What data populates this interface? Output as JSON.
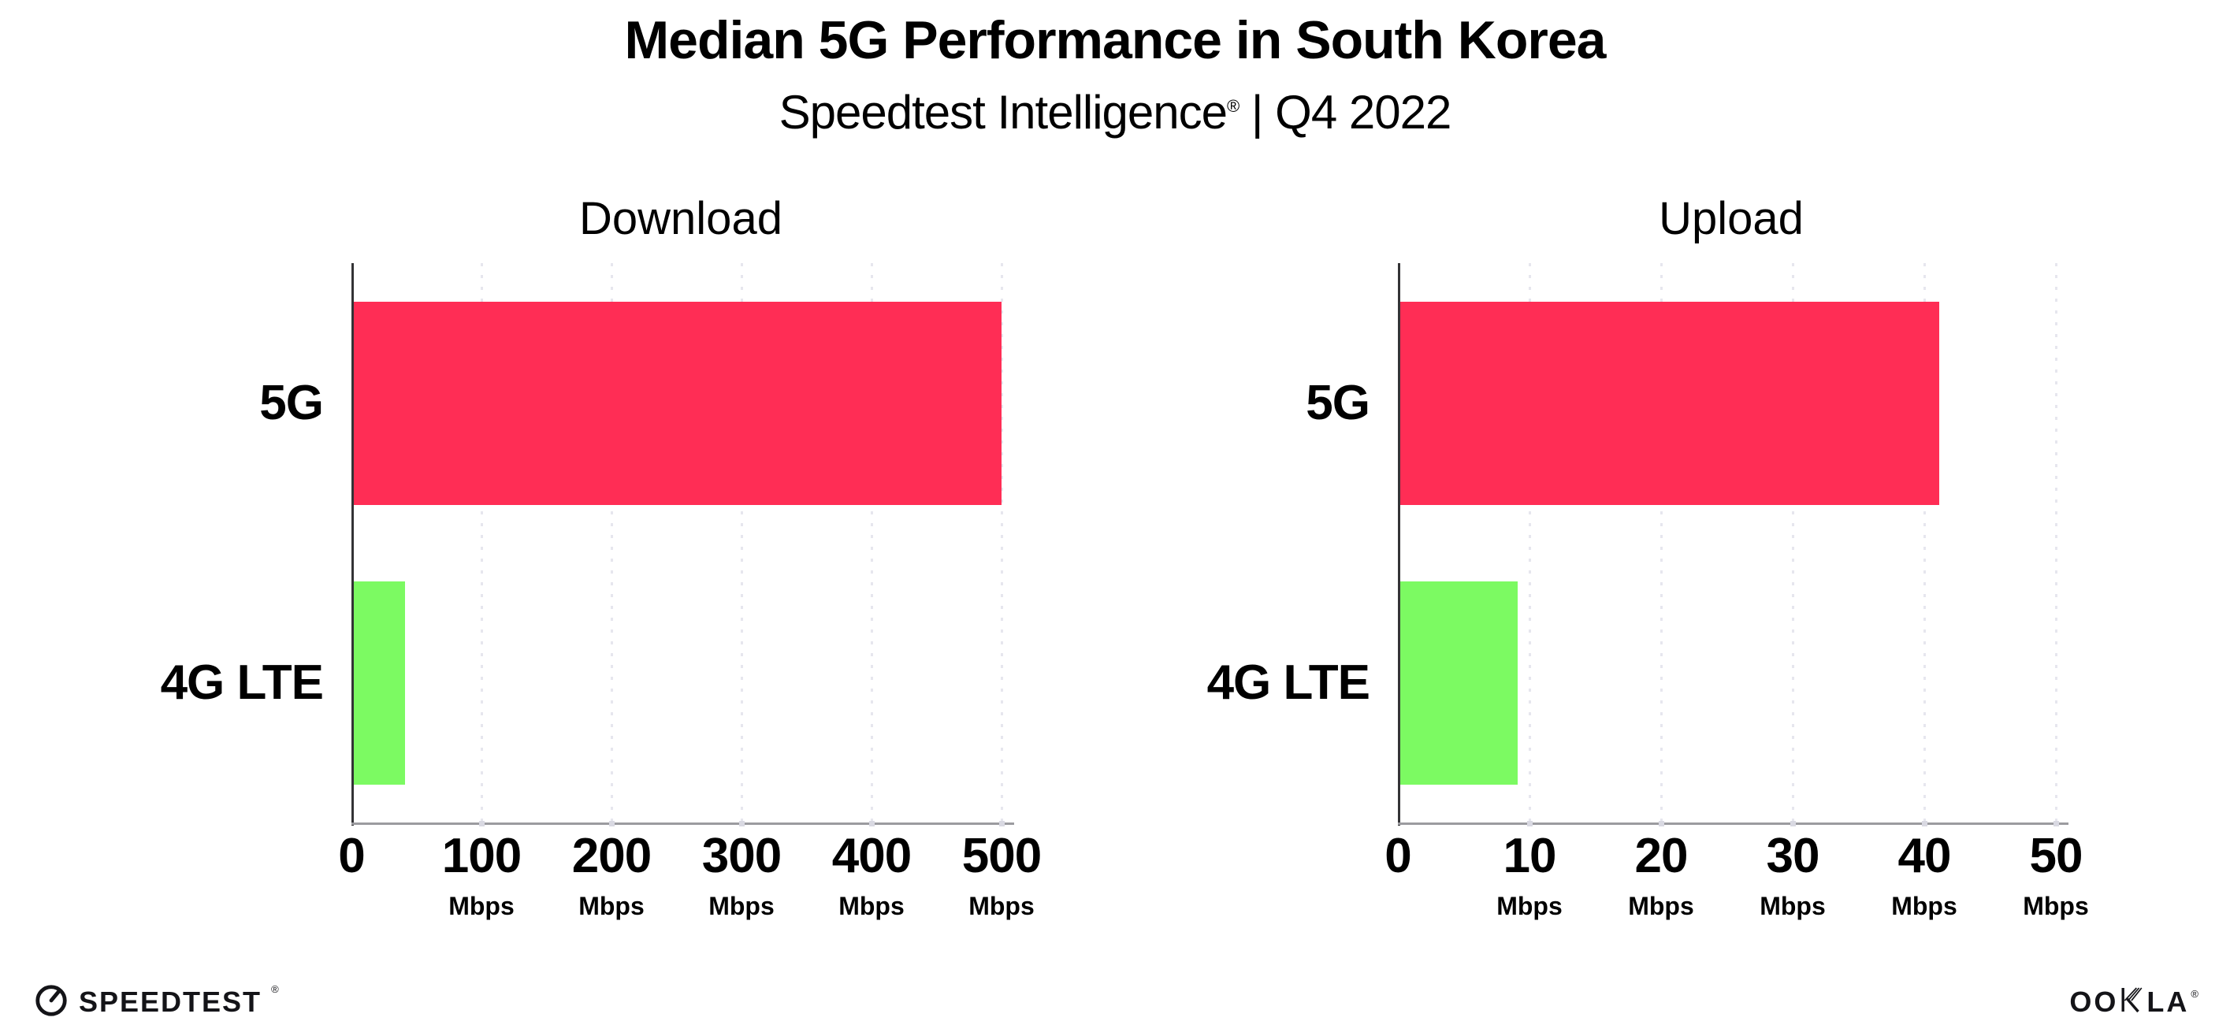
{
  "page": {
    "title": "Median 5G Performance in South Korea",
    "subtitle": {
      "brand": "Speedtest Intelligence",
      "reg": "®",
      "rest": " | Q4 2022"
    }
  },
  "chart_data": [
    {
      "type": "bar",
      "orientation": "horizontal",
      "title": "Download",
      "categories": [
        "5G",
        "4G LTE"
      ],
      "values": [
        499,
        40
      ],
      "value_unit": "Mbps",
      "bar_colors": [
        "#FF2D55",
        "#7CFA62"
      ],
      "xlim": [
        0,
        500
      ],
      "xticks": [
        0,
        100,
        200,
        300,
        400,
        500
      ],
      "tick_unit_label": "Mbps",
      "xlabel": "",
      "ylabel": "",
      "grid": "dotted-vertical",
      "legend": "none"
    },
    {
      "type": "bar",
      "orientation": "horizontal",
      "title": "Upload",
      "categories": [
        "5G",
        "4G LTE"
      ],
      "values": [
        41,
        9
      ],
      "value_unit": "Mbps",
      "bar_colors": [
        "#FF2D55",
        "#7CFA62"
      ],
      "xlim": [
        0,
        50
      ],
      "xticks": [
        0,
        10,
        20,
        30,
        40,
        50
      ],
      "tick_unit_label": "Mbps",
      "xlabel": "",
      "ylabel": "",
      "grid": "dotted-vertical",
      "legend": "none"
    }
  ],
  "footer": {
    "speedtest": {
      "text": "SPEEDTEST",
      "reg": "®"
    },
    "ookla": {
      "text_before_k": "OO",
      "k_letter": "K",
      "text_after_k": "LA",
      "reg": "®"
    }
  },
  "colors": {
    "bar_5g": "#FF2D55",
    "bar_4g_lte": "#7CFA62",
    "gridline": "#E6E6EE",
    "x_axis": "#9B9B9F",
    "y_axis": "#333336",
    "text": "#000000",
    "background": "#FFFFFF"
  }
}
